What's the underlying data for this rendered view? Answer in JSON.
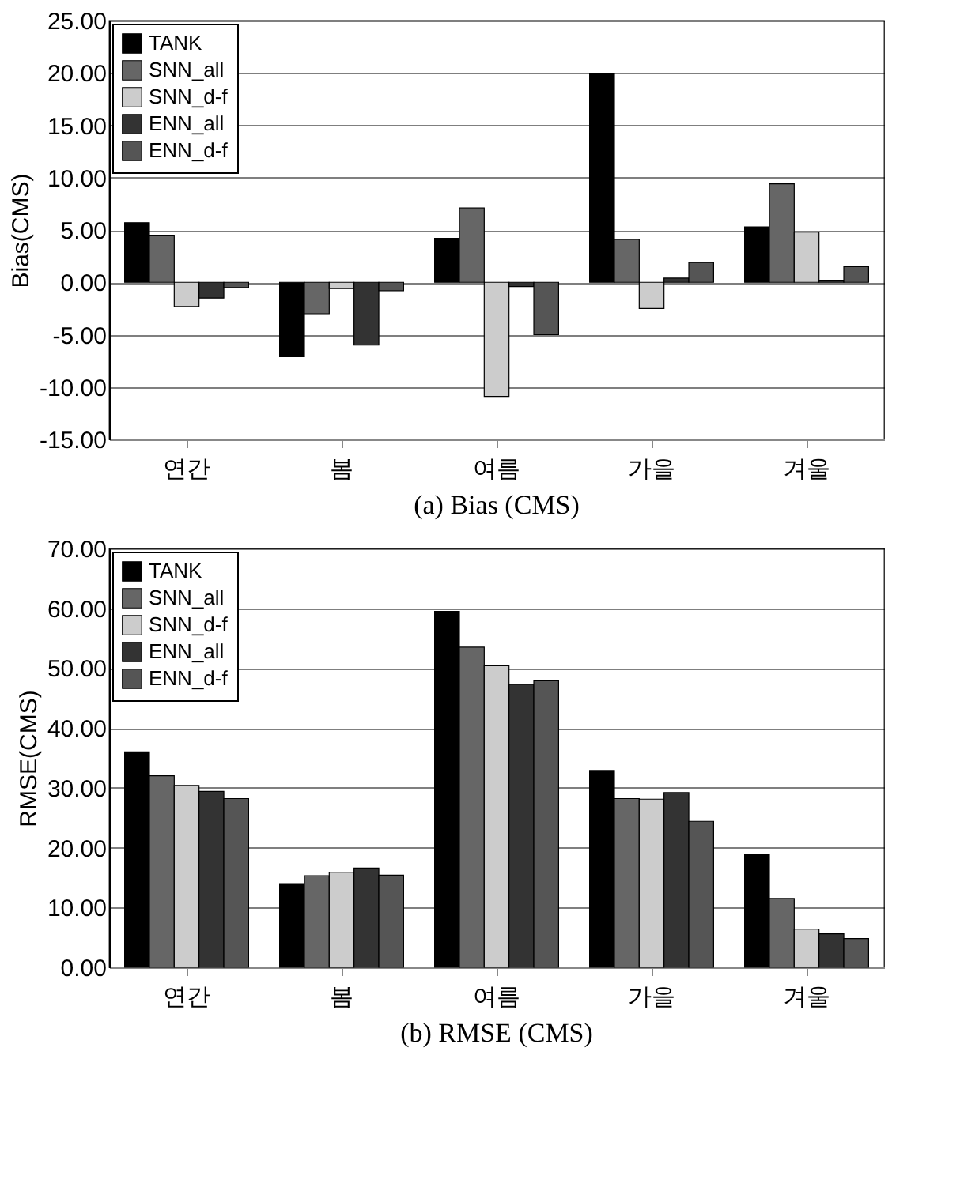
{
  "chart_data": [
    {
      "type": "bar",
      "title": "(a) Bias (CMS)",
      "ylabel": "Bias(CMS)",
      "categories": [
        "연간",
        "봄",
        "여름",
        "가을",
        "겨울"
      ],
      "series": [
        {
          "name": "TANK",
          "color": "#000000",
          "values": [
            5.7,
            -7.1,
            4.2,
            19.9,
            5.3
          ]
        },
        {
          "name": "SNN_all",
          "color": "#666666",
          "values": [
            4.5,
            -3.0,
            7.1,
            4.1,
            9.4
          ]
        },
        {
          "name": "SNN_d-f",
          "color": "#cccccc",
          "values": [
            -2.3,
            -0.6,
            -10.9,
            -2.5,
            4.8
          ]
        },
        {
          "name": "ENN_all",
          "color": "#333333",
          "values": [
            -1.5,
            -6.0,
            -0.4,
            0.4,
            0.2
          ]
        },
        {
          "name": "ENN_d-f",
          "color": "#555555",
          "values": [
            -0.5,
            -0.8,
            -5.0,
            1.9,
            1.5
          ]
        }
      ],
      "ylim": [
        -15,
        25
      ],
      "yticks": [
        {
          "value": -15,
          "label": "-15.00"
        },
        {
          "value": -10,
          "label": "-10.00"
        },
        {
          "value": -5,
          "label": "-5.00"
        },
        {
          "value": 0,
          "label": "0.00"
        },
        {
          "value": 5,
          "label": "5.00"
        },
        {
          "value": 10,
          "label": "10.00"
        },
        {
          "value": 15,
          "label": "15.00"
        },
        {
          "value": 20,
          "label": "20.00"
        },
        {
          "value": 25,
          "label": "25.00"
        }
      ],
      "grid": "y",
      "legend": "top left"
    },
    {
      "type": "bar",
      "title": "(b) RMSE (CMS)",
      "ylabel": "RMSE(CMS)",
      "categories": [
        "연간",
        "봄",
        "여름",
        "가을",
        "겨울"
      ],
      "series": [
        {
          "name": "TANK",
          "color": "#000000",
          "values": [
            36.0,
            14.0,
            59.5,
            32.9,
            18.8
          ]
        },
        {
          "name": "SNN_all",
          "color": "#666666",
          "values": [
            32.0,
            15.3,
            53.5,
            28.2,
            11.5
          ]
        },
        {
          "name": "SNN_d-f",
          "color": "#cccccc",
          "values": [
            30.4,
            15.9,
            50.4,
            28.1,
            6.4
          ]
        },
        {
          "name": "ENN_all",
          "color": "#333333",
          "values": [
            29.4,
            16.6,
            47.3,
            29.2,
            5.6
          ]
        },
        {
          "name": "ENN_d-f",
          "color": "#555555",
          "values": [
            28.2,
            15.4,
            47.9,
            24.4,
            4.8
          ]
        }
      ],
      "ylim": [
        0,
        70
      ],
      "yticks": [
        {
          "value": 0,
          "label": "0.00"
        },
        {
          "value": 10,
          "label": "10.00"
        },
        {
          "value": 20,
          "label": "20.00"
        },
        {
          "value": 30,
          "label": "30.00"
        },
        {
          "value": 40,
          "label": "40.00"
        },
        {
          "value": 50,
          "label": "50.00"
        },
        {
          "value": 60,
          "label": "60.00"
        },
        {
          "value": 70,
          "label": "70.00"
        }
      ],
      "grid": "y",
      "legend": "top left"
    }
  ]
}
